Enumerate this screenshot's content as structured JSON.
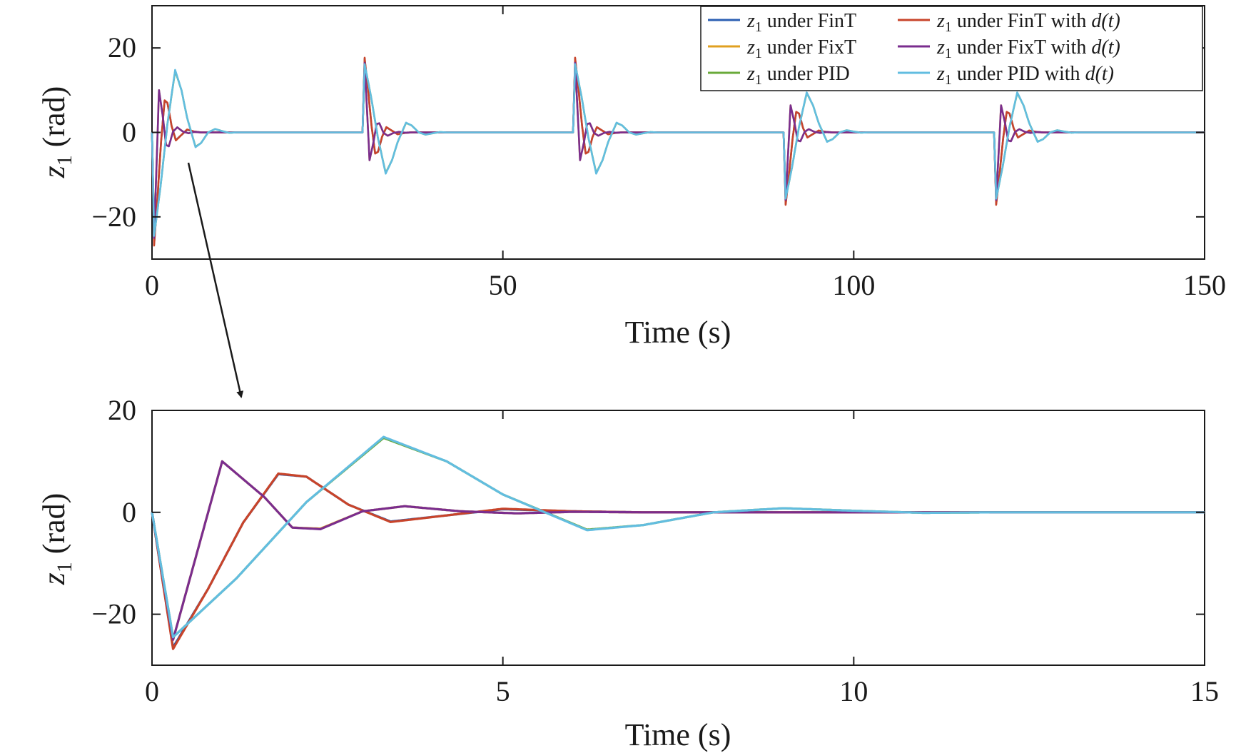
{
  "chart_data": [
    {
      "type": "line",
      "xlabel": "Time (s)",
      "ylabel": "z1 (rad)",
      "ylabel_var": "z",
      "ylabel_sub": "1",
      "ylabel_unit": " (rad)",
      "xlim": [
        0,
        150
      ],
      "ylim": [
        -30,
        30
      ],
      "xticks": [
        0,
        50,
        100,
        150
      ],
      "xtick_labels": [
        "0",
        "50",
        "100",
        "150"
      ],
      "yticks": [
        -20,
        0,
        20
      ],
      "ytick_labels": [
        "−20",
        "0",
        "20"
      ],
      "grid": false,
      "legend_position": "top-right",
      "legend_columns": 2,
      "disturbance_times": [
        0,
        30,
        60,
        90,
        120
      ],
      "disturbance_signs": [
        -1,
        1,
        1,
        -1,
        -1
      ],
      "series": [
        {
          "name": "z1 under FinT",
          "legend_var": "z",
          "legend_sub": "1",
          "legend_text": " under FinT",
          "legend_d": "",
          "color": "#2b5fb3",
          "points": [
            [
              0,
              0
            ],
            [
              0.3,
              -26.5
            ],
            [
              0.8,
              -15
            ],
            [
              1.3,
              -2
            ],
            [
              1.8,
              7.5
            ],
            [
              2.2,
              7
            ],
            [
              2.8,
              1.5
            ],
            [
              3.4,
              -1.8
            ],
            [
              4.2,
              -0.6
            ],
            [
              5,
              0.6
            ],
            [
              6,
              0.2
            ],
            [
              7,
              0
            ],
            [
              150,
              0
            ]
          ]
        },
        {
          "name": "z1 under FixT",
          "legend_var": "z",
          "legend_sub": "1",
          "legend_text": " under FixT",
          "legend_d": "",
          "color": "#e0a020",
          "points": [
            [
              0,
              0
            ],
            [
              0.3,
              -25
            ],
            [
              1,
              10
            ],
            [
              1.6,
              3
            ],
            [
              2,
              -3
            ],
            [
              2.4,
              -3.2
            ],
            [
              3,
              0.2
            ],
            [
              3.6,
              1.2
            ],
            [
              4.4,
              0.2
            ],
            [
              5.2,
              -0.2
            ],
            [
              6,
              0.1
            ],
            [
              7,
              0
            ],
            [
              150,
              0
            ]
          ]
        },
        {
          "name": "z1 under PID",
          "legend_var": "z",
          "legend_sub": "1",
          "legend_text": " under PID",
          "legend_d": "",
          "color": "#6aaa3a",
          "points": [
            [
              0,
              0
            ],
            [
              0.3,
              -24.5
            ],
            [
              1.2,
              -13
            ],
            [
              2.2,
              2
            ],
            [
              3.3,
              14.6
            ],
            [
              4.2,
              10
            ],
            [
              5,
              3.5
            ],
            [
              6.2,
              -3.4
            ],
            [
              7,
              -2.5
            ],
            [
              8,
              0
            ],
            [
              9,
              0.8
            ],
            [
              10,
              0.3
            ],
            [
              11,
              -0.1
            ],
            [
              12,
              0
            ],
            [
              150,
              0
            ]
          ]
        },
        {
          "name": "z1 under FinT with d(t)",
          "legend_var": "z",
          "legend_sub": "1",
          "legend_text": " under FinT with ",
          "legend_d": "d(t)",
          "color": "#c8442a",
          "points": [
            [
              0,
              0
            ],
            [
              0.3,
              -26.8
            ],
            [
              0.8,
              -15
            ],
            [
              1.3,
              -2
            ],
            [
              1.8,
              7.6
            ],
            [
              2.2,
              7
            ],
            [
              2.8,
              1.5
            ],
            [
              3.4,
              -1.9
            ],
            [
              4.2,
              -0.6
            ],
            [
              5,
              0.7
            ],
            [
              6,
              0.2
            ],
            [
              7,
              0
            ],
            [
              150,
              0
            ]
          ]
        },
        {
          "name": "z1 under FixT with d(t)",
          "legend_var": "z",
          "legend_sub": "1",
          "legend_text": " under FixT with ",
          "legend_d": "d(t)",
          "color": "#7a2d8e",
          "points": [
            [
              0,
              0
            ],
            [
              0.3,
              -25
            ],
            [
              1,
              10
            ],
            [
              1.6,
              3
            ],
            [
              2,
              -3
            ],
            [
              2.4,
              -3.3
            ],
            [
              3,
              0.2
            ],
            [
              3.6,
              1.2
            ],
            [
              4.4,
              0.2
            ],
            [
              5.2,
              -0.2
            ],
            [
              6,
              0.1
            ],
            [
              7,
              0
            ],
            [
              150,
              0
            ]
          ]
        },
        {
          "name": "z1 under PID with d(t)",
          "legend_var": "z",
          "legend_sub": "1",
          "legend_text": " under PID with ",
          "legend_d": "d(t)",
          "color": "#62bde0",
          "points": [
            [
              0,
              0
            ],
            [
              0.3,
              -24.5
            ],
            [
              1.2,
              -13
            ],
            [
              2.2,
              2
            ],
            [
              3.3,
              14.8
            ],
            [
              4.2,
              10
            ],
            [
              5,
              3.5
            ],
            [
              6.2,
              -3.5
            ],
            [
              7,
              -2.5
            ],
            [
              8,
              0
            ],
            [
              9,
              0.8
            ],
            [
              10,
              0.3
            ],
            [
              11,
              -0.1
            ],
            [
              12,
              0
            ],
            [
              150,
              0
            ]
          ]
        }
      ]
    },
    {
      "type": "line",
      "xlabel": "Time (s)",
      "ylabel": "z1 (rad)",
      "ylabel_var": "z",
      "ylabel_sub": "1",
      "ylabel_unit": " (rad)",
      "xlim": [
        0,
        15
      ],
      "ylim": [
        -30,
        20
      ],
      "xticks": [
        0,
        5,
        10,
        15
      ],
      "xtick_labels": [
        "0",
        "5",
        "10",
        "15"
      ],
      "yticks": [
        -20,
        0,
        20
      ],
      "ytick_labels": [
        "−20",
        "0",
        "20"
      ],
      "grid": false,
      "series_ref": "same six series as top panel, zoomed to 0–15 s"
    }
  ]
}
